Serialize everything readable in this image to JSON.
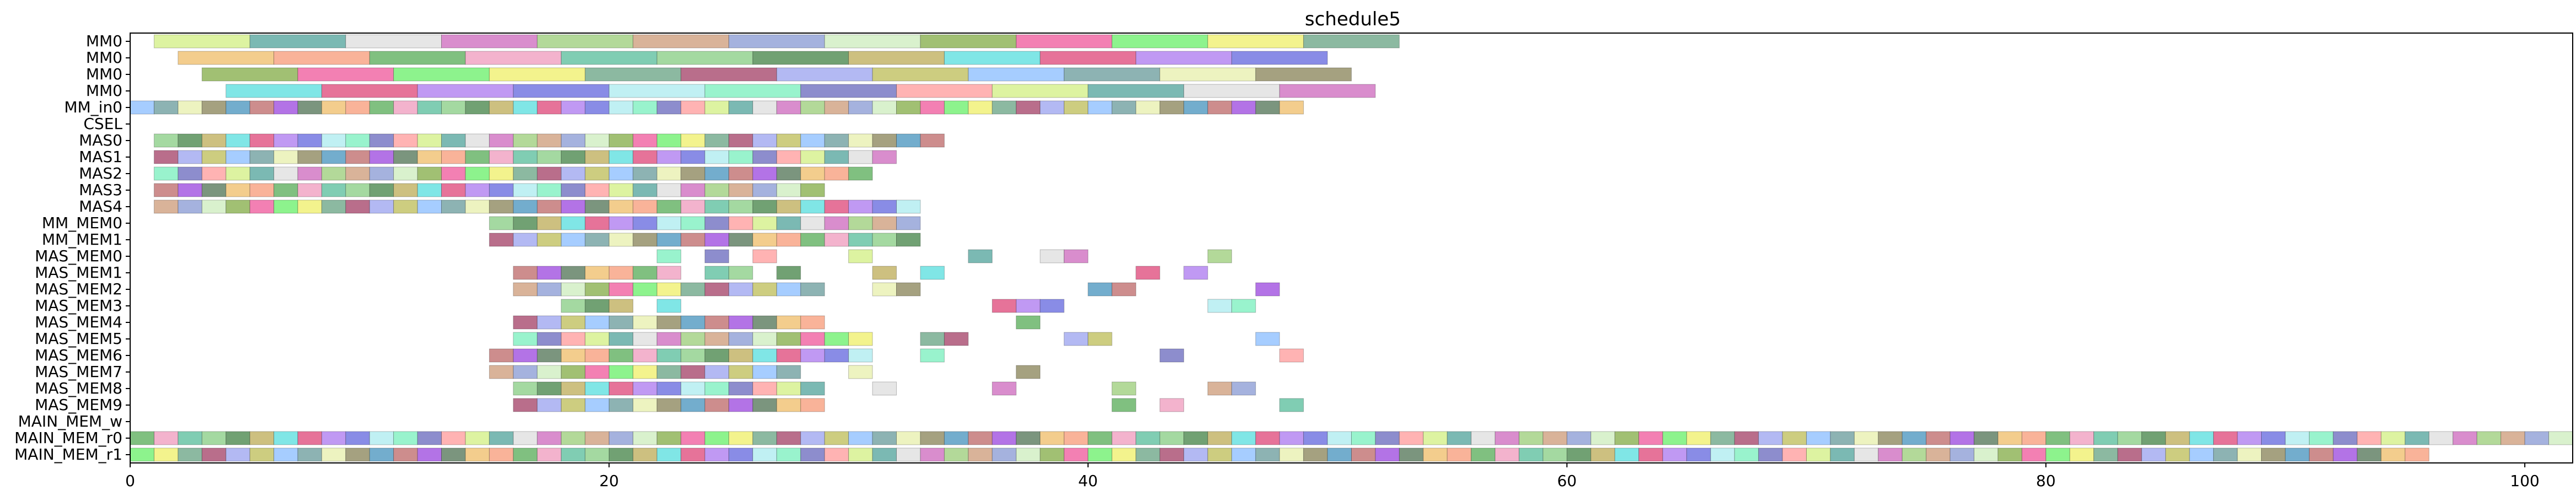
{
  "chart_data": {
    "type": "gantt",
    "title": "schedule5",
    "xlabel": "",
    "ylabel": "",
    "xlim": [
      0,
      102
    ],
    "xticks": [
      0,
      20,
      40,
      60,
      80,
      100
    ],
    "grid": false,
    "legend": "none",
    "rows": [
      "MM0",
      "MM0",
      "MM0",
      "MM0",
      "MM_in0",
      "CSEL",
      "MAS0",
      "MAS1",
      "MAS2",
      "MAS3",
      "MAS4",
      "MM_MEM0",
      "MM_MEM1",
      "MAS_MEM0",
      "MAS_MEM1",
      "MAS_MEM2",
      "MAS_MEM3",
      "MAS_MEM4",
      "MAS_MEM5",
      "MAS_MEM6",
      "MAS_MEM7",
      "MAS_MEM8",
      "MAS_MEM9",
      "MAIN_MEM_w",
      "MAIN_MEM_r0",
      "MAIN_MEM_r1"
    ],
    "tasks": [
      {
        "row": 0,
        "segments": [
          [
            1,
            5
          ],
          [
            5,
            9
          ],
          [
            9,
            13
          ],
          [
            13,
            17
          ],
          [
            17,
            21
          ],
          [
            21,
            25
          ],
          [
            25,
            29
          ],
          [
            29,
            33
          ],
          [
            33,
            37
          ],
          [
            37,
            41
          ],
          [
            41,
            45
          ],
          [
            45,
            49
          ],
          [
            49,
            53
          ]
        ]
      },
      {
        "row": 1,
        "segments": [
          [
            2,
            6
          ],
          [
            6,
            10
          ],
          [
            10,
            14
          ],
          [
            14,
            18
          ],
          [
            18,
            22
          ],
          [
            22,
            26
          ],
          [
            26,
            30
          ],
          [
            30,
            34
          ],
          [
            34,
            38
          ],
          [
            38,
            42
          ],
          [
            42,
            46
          ],
          [
            46,
            50
          ]
        ]
      },
      {
        "row": 2,
        "segments": [
          [
            3,
            7
          ],
          [
            7,
            11
          ],
          [
            11,
            15
          ],
          [
            15,
            19
          ],
          [
            19,
            23
          ],
          [
            23,
            27
          ],
          [
            27,
            31
          ],
          [
            31,
            35
          ],
          [
            35,
            39
          ],
          [
            39,
            43
          ],
          [
            43,
            47
          ],
          [
            47,
            51
          ]
        ]
      },
      {
        "row": 3,
        "segments": [
          [
            4,
            8
          ],
          [
            8,
            12
          ],
          [
            12,
            16
          ],
          [
            16,
            20
          ],
          [
            20,
            24
          ],
          [
            24,
            28
          ],
          [
            28,
            32
          ],
          [
            32,
            36
          ],
          [
            36,
            40
          ],
          [
            40,
            44
          ],
          [
            44,
            48
          ],
          [
            48,
            52
          ]
        ]
      },
      {
        "row": 4,
        "segments": "unit",
        "from": 0,
        "to": 49
      },
      {
        "row": 6,
        "segments": "unit",
        "from": 1,
        "to": 34
      },
      {
        "row": 7,
        "segments": "unit",
        "from": 1,
        "to": 32
      },
      {
        "row": 8,
        "segments": "unit",
        "from": 1,
        "to": 31
      },
      {
        "row": 9,
        "segments": "unit",
        "from": 1,
        "to": 29
      },
      {
        "row": 10,
        "segments": "unit",
        "from": 1,
        "to": 33
      },
      {
        "row": 11,
        "segments": "unit",
        "from": 15,
        "to": 33
      },
      {
        "row": 12,
        "segments": "unit",
        "from": 15,
        "to": 33
      },
      {
        "row": 13,
        "segments": [
          [
            22,
            23
          ],
          [
            24,
            25
          ],
          [
            26,
            27
          ],
          [
            30,
            31
          ],
          [
            35,
            36
          ],
          [
            38,
            39
          ],
          [
            39,
            40
          ],
          [
            45,
            46
          ]
        ]
      },
      {
        "row": 14,
        "segments": [
          [
            16,
            17
          ],
          [
            17,
            18
          ],
          [
            18,
            19
          ],
          [
            19,
            20
          ],
          [
            20,
            21
          ],
          [
            21,
            22
          ],
          [
            22,
            23
          ],
          [
            24,
            25
          ],
          [
            25,
            26
          ],
          [
            27,
            28
          ],
          [
            31,
            32
          ],
          [
            33,
            34
          ],
          [
            42,
            43
          ],
          [
            44,
            45
          ]
        ]
      },
      {
        "row": 15,
        "segments": [
          [
            16,
            17
          ],
          [
            17,
            18
          ],
          [
            18,
            19
          ],
          [
            19,
            20
          ],
          [
            20,
            21
          ],
          [
            21,
            22
          ],
          [
            22,
            23
          ],
          [
            23,
            24
          ],
          [
            24,
            25
          ],
          [
            25,
            26
          ],
          [
            26,
            27
          ],
          [
            27,
            28
          ],
          [
            28,
            29
          ],
          [
            31,
            32
          ],
          [
            32,
            33
          ],
          [
            40,
            41
          ],
          [
            41,
            42
          ],
          [
            47,
            48
          ]
        ]
      },
      {
        "row": 16,
        "segments": [
          [
            18,
            19
          ],
          [
            19,
            20
          ],
          [
            20,
            21
          ],
          [
            22,
            23
          ],
          [
            36,
            37
          ],
          [
            37,
            38
          ],
          [
            38,
            39
          ],
          [
            45,
            46
          ],
          [
            46,
            47
          ]
        ]
      },
      {
        "row": 17,
        "segments": [
          [
            16,
            17
          ],
          [
            17,
            18
          ],
          [
            18,
            19
          ],
          [
            19,
            20
          ],
          [
            20,
            21
          ],
          [
            21,
            22
          ],
          [
            22,
            23
          ],
          [
            23,
            24
          ],
          [
            24,
            25
          ],
          [
            25,
            26
          ],
          [
            26,
            27
          ],
          [
            27,
            28
          ],
          [
            28,
            29
          ],
          [
            37,
            38
          ]
        ]
      },
      {
        "row": 18,
        "segments": [
          [
            16,
            17
          ],
          [
            17,
            18
          ],
          [
            18,
            19
          ],
          [
            19,
            20
          ],
          [
            20,
            21
          ],
          [
            21,
            22
          ],
          [
            22,
            23
          ],
          [
            23,
            24
          ],
          [
            24,
            25
          ],
          [
            25,
            26
          ],
          [
            26,
            27
          ],
          [
            27,
            28
          ],
          [
            28,
            29
          ],
          [
            29,
            30
          ],
          [
            30,
            31
          ],
          [
            33,
            34
          ],
          [
            34,
            35
          ],
          [
            39,
            40
          ],
          [
            40,
            41
          ],
          [
            47,
            48
          ]
        ]
      },
      {
        "row": 19,
        "segments": [
          [
            15,
            16
          ],
          [
            16,
            17
          ],
          [
            17,
            18
          ],
          [
            18,
            19
          ],
          [
            19,
            20
          ],
          [
            20,
            21
          ],
          [
            21,
            22
          ],
          [
            22,
            23
          ],
          [
            23,
            24
          ],
          [
            24,
            25
          ],
          [
            25,
            26
          ],
          [
            26,
            27
          ],
          [
            27,
            28
          ],
          [
            28,
            29
          ],
          [
            29,
            30
          ],
          [
            30,
            31
          ],
          [
            33,
            34
          ],
          [
            43,
            44
          ],
          [
            48,
            49
          ]
        ]
      },
      {
        "row": 20,
        "segments": [
          [
            15,
            16
          ],
          [
            16,
            17
          ],
          [
            17,
            18
          ],
          [
            18,
            19
          ],
          [
            19,
            20
          ],
          [
            20,
            21
          ],
          [
            21,
            22
          ],
          [
            22,
            23
          ],
          [
            23,
            24
          ],
          [
            24,
            25
          ],
          [
            25,
            26
          ],
          [
            26,
            27
          ],
          [
            27,
            28
          ],
          [
            30,
            31
          ],
          [
            37,
            38
          ]
        ]
      },
      {
        "row": 21,
        "segments": [
          [
            16,
            17
          ],
          [
            17,
            18
          ],
          [
            18,
            19
          ],
          [
            19,
            20
          ],
          [
            20,
            21
          ],
          [
            21,
            22
          ],
          [
            22,
            23
          ],
          [
            23,
            24
          ],
          [
            24,
            25
          ],
          [
            25,
            26
          ],
          [
            26,
            27
          ],
          [
            27,
            28
          ],
          [
            28,
            29
          ],
          [
            31,
            32
          ],
          [
            36,
            37
          ],
          [
            41,
            42
          ],
          [
            45,
            46
          ],
          [
            46,
            47
          ]
        ]
      },
      {
        "row": 22,
        "segments": [
          [
            16,
            17
          ],
          [
            17,
            18
          ],
          [
            18,
            19
          ],
          [
            19,
            20
          ],
          [
            20,
            21
          ],
          [
            21,
            22
          ],
          [
            22,
            23
          ],
          [
            23,
            24
          ],
          [
            24,
            25
          ],
          [
            25,
            26
          ],
          [
            26,
            27
          ],
          [
            27,
            28
          ],
          [
            28,
            29
          ],
          [
            41,
            42
          ],
          [
            43,
            44
          ],
          [
            48,
            49
          ]
        ]
      },
      {
        "row": 24,
        "segments": "unit",
        "from": 0,
        "to": 102
      },
      {
        "row": 25,
        "segments": "unit",
        "from": 0,
        "to": 102,
        "gaps": [
          [
            96,
            102
          ]
        ]
      }
    ],
    "palette": [
      "#d4f08a",
      "#5a7a5e",
      "#8f9fd6",
      "#8dcf8a",
      "#6fa88a",
      "#6c6fe0",
      "#e8f0b0",
      "#5aa8a0",
      "#f0c070",
      "#d0eec0",
      "#4e8a50",
      "#a84a6e",
      "#b0ecf0",
      "#8f8a60",
      "#e0e0e0",
      "#f8a080",
      "#8ab050",
      "#c0b060",
      "#a0a8f0",
      "#80f0c0",
      "#5098c0",
      "#d070c0",
      "#60b060",
      "#f060a0",
      "#60e0e0",
      "#c0c060",
      "#7070c0",
      "#c07070",
      "#a0d080",
      "#f0a0c0",
      "#70f070",
      "#e05080",
      "#90c0ff",
      "#ffa0a0",
      "#a050e0",
      "#d0a080",
      "#60c0a0",
      "#f0f070",
      "#b080f0",
      "#70a0a0"
    ]
  }
}
